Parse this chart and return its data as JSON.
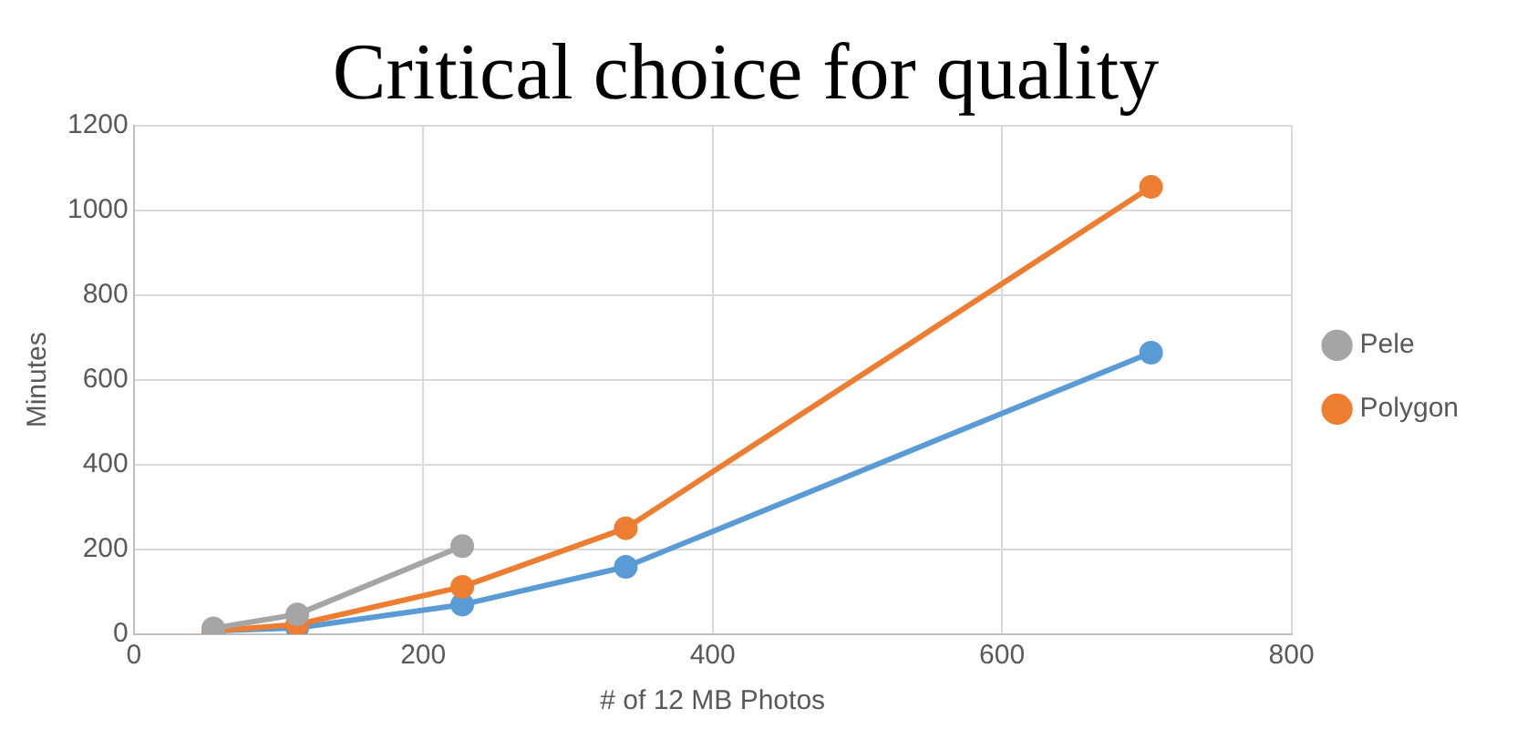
{
  "chart_data": {
    "type": "line",
    "title": "Critical choice for quality",
    "xlabel": "# of 12 MB Photos",
    "ylabel": "Minutes",
    "xlim": [
      0,
      800
    ],
    "xticks": [
      0,
      200,
      400,
      600,
      800
    ],
    "ylim": [
      0,
      1200
    ],
    "yticks": [
      0,
      200,
      400,
      600,
      800,
      1000,
      1200
    ],
    "grid": true,
    "legend": "right",
    "marker": "circle",
    "series": [
      {
        "color": "#5b9bd5",
        "x": [
          55,
          113,
          227,
          340,
          703
        ],
        "values": [
          8,
          15,
          70,
          159,
          664
        ]
      },
      {
        "name": "Polygon",
        "color": "#ed7d31",
        "x": [
          55,
          113,
          227,
          340,
          703
        ],
        "values": [
          8,
          23,
          112,
          250,
          1055
        ]
      },
      {
        "name": "Pele",
        "color": "#a5a5a5",
        "x": [
          55,
          113,
          227
        ],
        "values": [
          14,
          47,
          208
        ]
      }
    ]
  }
}
